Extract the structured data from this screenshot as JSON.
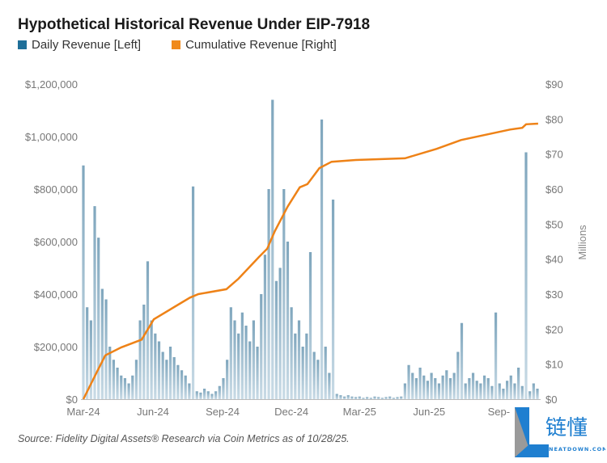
{
  "chart_data": {
    "type": "bar+line",
    "title": "Hypothetical Historical Revenue Under EIP-7918",
    "legend": [
      {
        "name": "Daily Revenue [Left]",
        "color": "#1f6f99"
      },
      {
        "name": "Cumulative Revenue [Right]",
        "color": "#f08a1c"
      }
    ],
    "legend_placement": "top-left",
    "x_ticks": [
      {
        "label": "Mar-24",
        "date": "2024-03-01"
      },
      {
        "label": "Jun-24",
        "date": "2024-06-01"
      },
      {
        "label": "Sep-24",
        "date": "2024-09-01"
      },
      {
        "label": "Dec-24",
        "date": "2024-12-01"
      },
      {
        "label": "Mar-25",
        "date": "2025-03-01"
      },
      {
        "label": "Jun-25",
        "date": "2025-06-01"
      },
      {
        "label": "Sep-",
        "date": "2025-09-01"
      }
    ],
    "y_left": {
      "range": [
        0,
        1200000
      ],
      "ticks": [
        "$0",
        "$200,000",
        "$400,000",
        "$600,000",
        "$800,000",
        "$1,000,000",
        "$1,200,000"
      ]
    },
    "y_right": {
      "range": [
        0,
        90
      ],
      "label": "Millions",
      "ticks": [
        "$0",
        "$10",
        "$20",
        "$30",
        "$40",
        "$50",
        "$60",
        "$70",
        "$80",
        "$90"
      ]
    },
    "grid": false,
    "daily_series": {
      "name": "Daily Revenue [Left]",
      "start_date": "2024-03-01",
      "values": [
        890000,
        350000,
        300000,
        735000,
        615000,
        420000,
        380000,
        200000,
        150000,
        120000,
        90000,
        80000,
        60000,
        90000,
        150000,
        300000,
        360000,
        525000,
        300000,
        250000,
        220000,
        180000,
        150000,
        200000,
        160000,
        130000,
        110000,
        90000,
        60000,
        810000,
        30000,
        25000,
        40000,
        30000,
        20000,
        30000,
        50000,
        80000,
        150000,
        350000,
        300000,
        250000,
        330000,
        280000,
        220000,
        300000,
        200000,
        400000,
        550000,
        800000,
        1140000,
        450000,
        500000,
        800000,
        600000,
        350000,
        250000,
        300000,
        200000,
        250000,
        560000,
        180000,
        150000,
        1065000,
        200000,
        100000,
        760000,
        20000,
        15000,
        10000,
        15000,
        10000,
        8000,
        10000,
        5000,
        8000,
        5000,
        10000,
        8000,
        5000,
        8000,
        10000,
        5000,
        8000,
        10000,
        60000,
        130000,
        100000,
        80000,
        120000,
        90000,
        70000,
        100000,
        80000,
        60000,
        90000,
        110000,
        80000,
        100000,
        180000,
        290000,
        60000,
        80000,
        100000,
        70000,
        60000,
        90000,
        80000,
        50000,
        330000,
        60000,
        40000,
        70000,
        90000,
        60000,
        120000,
        50000,
        940000,
        30000,
        60000,
        40000
      ]
    },
    "cumulative_series": {
      "name": "Cumulative Revenue [Right]",
      "unit": "Millions",
      "points": [
        [
          "2024-03-01",
          0
        ],
        [
          "2024-03-19",
          7.8
        ],
        [
          "2024-03-30",
          12.5
        ],
        [
          "2024-04-20",
          14.8
        ],
        [
          "2024-05-17",
          17
        ],
        [
          "2024-06-02",
          22.8
        ],
        [
          "2024-06-29",
          26.3
        ],
        [
          "2024-07-20",
          29
        ],
        [
          "2024-07-31",
          30
        ],
        [
          "2024-09-06",
          31.4
        ],
        [
          "2024-09-22",
          34.4
        ],
        [
          "2024-10-19",
          40.6
        ],
        [
          "2024-10-30",
          43
        ],
        [
          "2024-11-09",
          48
        ],
        [
          "2024-11-26",
          55
        ],
        [
          "2024-12-12",
          60.5
        ],
        [
          "2024-12-22",
          61.4
        ],
        [
          "2025-01-07",
          66
        ],
        [
          "2025-01-23",
          67.8
        ],
        [
          "2025-02-24",
          68.3
        ],
        [
          "2025-04-30",
          68.8
        ],
        [
          "2025-06-11",
          71.5
        ],
        [
          "2025-07-13",
          74
        ],
        [
          "2025-09-16",
          77
        ],
        [
          "2025-10-02",
          77.5
        ],
        [
          "2025-10-07",
          78.5
        ],
        [
          "2025-10-23",
          78.7
        ]
      ]
    }
  },
  "source": "Source: Fidelity Digital Assets® Research via Coin Metrics as of 10/28/25.",
  "logo": {
    "text": "链懂",
    "subtext": "NEATDOWN.COM"
  }
}
